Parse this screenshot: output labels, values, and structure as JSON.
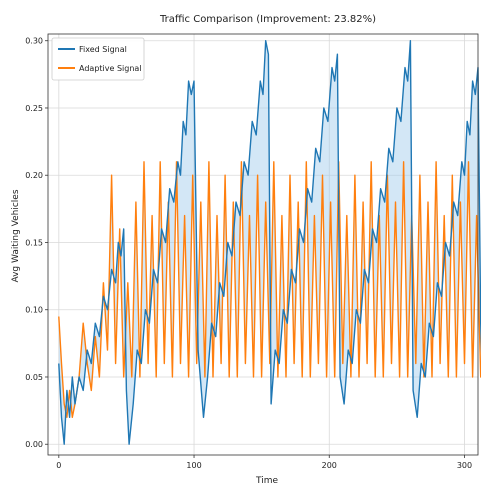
{
  "chart_data": {
    "type": "line",
    "title": "Traffic Comparison (Improvement: 23.82%)",
    "xlabel": "Time",
    "ylabel": "Avg Waiting Vehicles",
    "xlim": [
      -8,
      310
    ],
    "ylim": [
      -0.008,
      0.305
    ],
    "xticks": [
      0,
      100,
      200,
      300
    ],
    "yticks": [
      0.0,
      0.05,
      0.1,
      0.15,
      0.2,
      0.25,
      0.3
    ],
    "xtick_labels": [
      "0",
      "100",
      "200",
      "300"
    ],
    "ytick_labels": [
      "0.00",
      "0.05",
      "0.10",
      "0.15",
      "0.20",
      "0.25",
      "0.30"
    ],
    "grid": true,
    "legend_position": "top-left",
    "fill_between": true,
    "series": [
      {
        "name": "Fixed Signal",
        "color": "#1f77b4",
        "points": [
          [
            0,
            0.06
          ],
          [
            2,
            0.02
          ],
          [
            4,
            0.0
          ],
          [
            6,
            0.04
          ],
          [
            8,
            0.02
          ],
          [
            10,
            0.05
          ],
          [
            12,
            0.03
          ],
          [
            15,
            0.05
          ],
          [
            18,
            0.04
          ],
          [
            21,
            0.07
          ],
          [
            24,
            0.06
          ],
          [
            27,
            0.09
          ],
          [
            30,
            0.08
          ],
          [
            33,
            0.11
          ],
          [
            36,
            0.1
          ],
          [
            39,
            0.13
          ],
          [
            42,
            0.12
          ],
          [
            44,
            0.15
          ],
          [
            46,
            0.14
          ],
          [
            48,
            0.16
          ],
          [
            50,
            0.04
          ],
          [
            52,
            0.0
          ],
          [
            55,
            0.03
          ],
          [
            58,
            0.07
          ],
          [
            61,
            0.06
          ],
          [
            64,
            0.1
          ],
          [
            67,
            0.09
          ],
          [
            70,
            0.13
          ],
          [
            73,
            0.12
          ],
          [
            76,
            0.16
          ],
          [
            79,
            0.15
          ],
          [
            82,
            0.19
          ],
          [
            85,
            0.18
          ],
          [
            88,
            0.21
          ],
          [
            90,
            0.2
          ],
          [
            92,
            0.24
          ],
          [
            94,
            0.23
          ],
          [
            96,
            0.27
          ],
          [
            98,
            0.26
          ],
          [
            100,
            0.27
          ],
          [
            103,
            0.07
          ],
          [
            107,
            0.02
          ],
          [
            110,
            0.05
          ],
          [
            113,
            0.09
          ],
          [
            116,
            0.08
          ],
          [
            119,
            0.12
          ],
          [
            122,
            0.11
          ],
          [
            125,
            0.15
          ],
          [
            128,
            0.14
          ],
          [
            131,
            0.18
          ],
          [
            134,
            0.17
          ],
          [
            137,
            0.21
          ],
          [
            140,
            0.2
          ],
          [
            143,
            0.24
          ],
          [
            146,
            0.23
          ],
          [
            149,
            0.27
          ],
          [
            151,
            0.26
          ],
          [
            153,
            0.3
          ],
          [
            155,
            0.29
          ],
          [
            157,
            0.03
          ],
          [
            160,
            0.07
          ],
          [
            163,
            0.06
          ],
          [
            166,
            0.1
          ],
          [
            169,
            0.09
          ],
          [
            172,
            0.13
          ],
          [
            175,
            0.12
          ],
          [
            178,
            0.16
          ],
          [
            181,
            0.15
          ],
          [
            184,
            0.19
          ],
          [
            187,
            0.18
          ],
          [
            190,
            0.22
          ],
          [
            193,
            0.21
          ],
          [
            196,
            0.25
          ],
          [
            199,
            0.24
          ],
          [
            202,
            0.28
          ],
          [
            204,
            0.27
          ],
          [
            206,
            0.29
          ],
          [
            208,
            0.05
          ],
          [
            211,
            0.03
          ],
          [
            214,
            0.07
          ],
          [
            217,
            0.06
          ],
          [
            220,
            0.1
          ],
          [
            223,
            0.09
          ],
          [
            226,
            0.13
          ],
          [
            229,
            0.12
          ],
          [
            232,
            0.16
          ],
          [
            235,
            0.15
          ],
          [
            238,
            0.19
          ],
          [
            241,
            0.18
          ],
          [
            244,
            0.22
          ],
          [
            247,
            0.21
          ],
          [
            250,
            0.25
          ],
          [
            253,
            0.24
          ],
          [
            256,
            0.28
          ],
          [
            258,
            0.27
          ],
          [
            260,
            0.3
          ],
          [
            262,
            0.04
          ],
          [
            265,
            0.02
          ],
          [
            268,
            0.06
          ],
          [
            271,
            0.05
          ],
          [
            274,
            0.09
          ],
          [
            277,
            0.08
          ],
          [
            280,
            0.12
          ],
          [
            283,
            0.11
          ],
          [
            286,
            0.15
          ],
          [
            289,
            0.14
          ],
          [
            292,
            0.18
          ],
          [
            295,
            0.17
          ],
          [
            298,
            0.21
          ],
          [
            300,
            0.2
          ],
          [
            302,
            0.24
          ],
          [
            304,
            0.23
          ],
          [
            306,
            0.27
          ],
          [
            308,
            0.26
          ],
          [
            310,
            0.28
          ],
          [
            312,
            0.09
          ],
          [
            314,
            0.03
          ]
        ]
      },
      {
        "name": "Adaptive Signal",
        "color": "#ff7f0e",
        "points": [
          [
            0,
            0.095
          ],
          [
            2,
            0.06
          ],
          [
            4,
            0.03
          ],
          [
            6,
            0.02
          ],
          [
            8,
            0.04
          ],
          [
            10,
            0.02
          ],
          [
            12,
            0.03
          ],
          [
            15,
            0.05
          ],
          [
            18,
            0.09
          ],
          [
            21,
            0.06
          ],
          [
            24,
            0.04
          ],
          [
            27,
            0.08
          ],
          [
            30,
            0.05
          ],
          [
            33,
            0.12
          ],
          [
            36,
            0.07
          ],
          [
            39,
            0.2
          ],
          [
            42,
            0.06
          ],
          [
            45,
            0.16
          ],
          [
            48,
            0.05
          ],
          [
            51,
            0.12
          ],
          [
            54,
            0.05
          ],
          [
            57,
            0.18
          ],
          [
            60,
            0.05
          ],
          [
            63,
            0.21
          ],
          [
            66,
            0.06
          ],
          [
            69,
            0.17
          ],
          [
            72,
            0.05
          ],
          [
            75,
            0.21
          ],
          [
            78,
            0.06
          ],
          [
            81,
            0.18
          ],
          [
            84,
            0.05
          ],
          [
            87,
            0.21
          ],
          [
            90,
            0.06
          ],
          [
            93,
            0.17
          ],
          [
            96,
            0.05
          ],
          [
            99,
            0.2
          ],
          [
            102,
            0.06
          ],
          [
            105,
            0.18
          ],
          [
            108,
            0.05
          ],
          [
            111,
            0.21
          ],
          [
            114,
            0.05
          ],
          [
            117,
            0.17
          ],
          [
            120,
            0.06
          ],
          [
            123,
            0.2
          ],
          [
            126,
            0.05
          ],
          [
            129,
            0.18
          ],
          [
            132,
            0.05
          ],
          [
            135,
            0.21
          ],
          [
            138,
            0.06
          ],
          [
            141,
            0.17
          ],
          [
            144,
            0.05
          ],
          [
            147,
            0.2
          ],
          [
            150,
            0.05
          ],
          [
            153,
            0.18
          ],
          [
            156,
            0.06
          ],
          [
            159,
            0.21
          ],
          [
            162,
            0.05
          ],
          [
            165,
            0.17
          ],
          [
            168,
            0.05
          ],
          [
            171,
            0.2
          ],
          [
            174,
            0.06
          ],
          [
            177,
            0.18
          ],
          [
            180,
            0.05
          ],
          [
            183,
            0.21
          ],
          [
            186,
            0.05
          ],
          [
            189,
            0.17
          ],
          [
            192,
            0.06
          ],
          [
            195,
            0.2
          ],
          [
            198,
            0.05
          ],
          [
            201,
            0.18
          ],
          [
            204,
            0.05
          ],
          [
            207,
            0.21
          ],
          [
            210,
            0.06
          ],
          [
            213,
            0.17
          ],
          [
            216,
            0.05
          ],
          [
            219,
            0.2
          ],
          [
            222,
            0.05
          ],
          [
            225,
            0.18
          ],
          [
            228,
            0.06
          ],
          [
            231,
            0.21
          ],
          [
            234,
            0.05
          ],
          [
            237,
            0.17
          ],
          [
            240,
            0.05
          ],
          [
            243,
            0.2
          ],
          [
            246,
            0.06
          ],
          [
            249,
            0.18
          ],
          [
            252,
            0.05
          ],
          [
            255,
            0.21
          ],
          [
            258,
            0.05
          ],
          [
            261,
            0.17
          ],
          [
            264,
            0.06
          ],
          [
            267,
            0.2
          ],
          [
            270,
            0.05
          ],
          [
            273,
            0.18
          ],
          [
            276,
            0.05
          ],
          [
            279,
            0.21
          ],
          [
            282,
            0.06
          ],
          [
            285,
            0.17
          ],
          [
            288,
            0.05
          ],
          [
            291,
            0.2
          ],
          [
            294,
            0.05
          ],
          [
            297,
            0.18
          ],
          [
            300,
            0.06
          ],
          [
            303,
            0.21
          ],
          [
            306,
            0.05
          ],
          [
            309,
            0.17
          ],
          [
            312,
            0.05
          ],
          [
            314,
            0.07
          ]
        ]
      }
    ]
  }
}
